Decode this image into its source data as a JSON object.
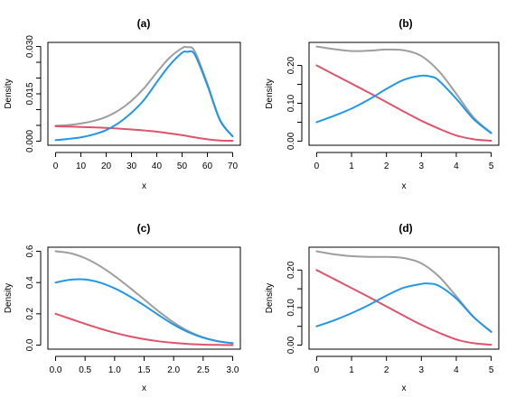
{
  "chart_data": [
    {
      "type": "line",
      "title": "(a)",
      "xlabel": "x",
      "ylabel": "Density",
      "xlim": [
        0,
        70
      ],
      "ylim": [
        0,
        0.03
      ],
      "xticks": [
        0,
        10,
        20,
        30,
        40,
        50,
        60,
        70
      ],
      "yticks": [
        0.0,
        0.005,
        0.01,
        0.015,
        0.02,
        0.025,
        0.03
      ],
      "ytick_labels": [
        "0.000",
        "",
        "0.015",
        "",
        "0.030"
      ],
      "ytick_label_values": [
        0.0,
        0.0075,
        0.015,
        0.0225,
        0.03
      ],
      "grid": false,
      "series": [
        {
          "color": "#9e9e9e",
          "x": [
            0,
            5,
            10,
            15,
            20,
            25,
            30,
            35,
            40,
            45,
            50,
            52,
            55,
            60,
            65,
            70
          ],
          "y": [
            0.0049,
            0.0051,
            0.0056,
            0.0064,
            0.0077,
            0.0098,
            0.0128,
            0.0168,
            0.0218,
            0.0264,
            0.0295,
            0.0298,
            0.0285,
            0.0182,
            0.0068,
            0.0016
          ]
        },
        {
          "color": "#df536b",
          "x": [
            0,
            10,
            20,
            30,
            40,
            50,
            55,
            60,
            65,
            70
          ],
          "y": [
            0.0047,
            0.0045,
            0.0042,
            0.0037,
            0.003,
            0.0019,
            0.0012,
            0.0006,
            0.0002,
            0.0001
          ]
        },
        {
          "color": "#2297e6",
          "x": [
            0,
            5,
            10,
            15,
            20,
            25,
            30,
            35,
            40,
            45,
            50,
            52,
            55,
            60,
            65,
            70
          ],
          "y": [
            0.0003,
            0.0007,
            0.0012,
            0.0021,
            0.0035,
            0.0058,
            0.009,
            0.0131,
            0.0187,
            0.024,
            0.028,
            0.0283,
            0.0275,
            0.0177,
            0.0066,
            0.0015
          ]
        }
      ]
    },
    {
      "type": "line",
      "title": "(b)",
      "xlabel": "x",
      "ylabel": "Density",
      "xlim": [
        0,
        5
      ],
      "ylim": [
        0,
        0.25
      ],
      "xticks": [
        0,
        1,
        2,
        3,
        4,
        5
      ],
      "yticks": [
        0.0,
        0.05,
        0.1,
        0.15,
        0.2
      ],
      "ytick_labels": [
        "0.00",
        "",
        "0.10",
        "",
        "0.20"
      ],
      "ytick_label_values": [
        0.0,
        0.05,
        0.1,
        0.15,
        0.2
      ],
      "grid": false,
      "series": [
        {
          "color": "#9e9e9e",
          "x": [
            0,
            0.5,
            1,
            1.5,
            2,
            2.5,
            3,
            3.5,
            4,
            4.5,
            5
          ],
          "y": [
            0.25,
            0.243,
            0.238,
            0.239,
            0.242,
            0.24,
            0.225,
            0.185,
            0.125,
            0.062,
            0.022
          ]
        },
        {
          "color": "#df536b",
          "x": [
            0,
            0.5,
            1,
            1.5,
            2,
            2.5,
            3,
            3.5,
            4,
            4.5,
            5
          ],
          "y": [
            0.2,
            0.176,
            0.152,
            0.128,
            0.103,
            0.078,
            0.054,
            0.033,
            0.015,
            0.005,
            0.001
          ]
        },
        {
          "color": "#2297e6",
          "x": [
            0,
            0.5,
            1,
            1.5,
            2,
            2.5,
            3,
            3.3,
            3.5,
            4,
            4.5,
            5
          ],
          "y": [
            0.05,
            0.067,
            0.086,
            0.11,
            0.138,
            0.162,
            0.173,
            0.17,
            0.16,
            0.112,
            0.058,
            0.021
          ]
        }
      ]
    },
    {
      "type": "line",
      "title": "(c)",
      "xlabel": "x",
      "ylabel": "Density",
      "xlim": [
        0,
        3
      ],
      "ylim": [
        0,
        0.6
      ],
      "xticks": [
        0.0,
        0.5,
        1.0,
        1.5,
        2.0,
        2.5,
        3.0
      ],
      "xtick_labels": [
        "0.0",
        "0.5",
        "1.0",
        "1.5",
        "2.0",
        "2.5",
        "3.0"
      ],
      "yticks": [
        0.0,
        0.2,
        0.4,
        0.6
      ],
      "ytick_labels": [
        "0.0",
        "0.2",
        "0.4",
        "0.6"
      ],
      "ytick_label_values": [
        0.0,
        0.2,
        0.4,
        0.6
      ],
      "grid": false,
      "series": [
        {
          "color": "#9e9e9e",
          "x": [
            0,
            0.25,
            0.5,
            0.75,
            1.0,
            1.25,
            1.5,
            1.75,
            2.0,
            2.25,
            2.5,
            2.75,
            3.0
          ],
          "y": [
            0.6,
            0.588,
            0.556,
            0.506,
            0.442,
            0.369,
            0.292,
            0.215,
            0.145,
            0.089,
            0.05,
            0.025,
            0.012
          ]
        },
        {
          "color": "#df536b",
          "x": [
            0,
            0.25,
            0.5,
            0.75,
            1.0,
            1.25,
            1.5,
            1.75,
            2.0,
            2.25,
            2.5,
            2.75,
            3.0
          ],
          "y": [
            0.2,
            0.168,
            0.136,
            0.106,
            0.079,
            0.056,
            0.038,
            0.024,
            0.014,
            0.007,
            0.003,
            0.001,
            0.0
          ]
        },
        {
          "color": "#2297e6",
          "x": [
            0,
            0.25,
            0.5,
            0.75,
            1.0,
            1.25,
            1.5,
            1.75,
            2.0,
            2.25,
            2.5,
            2.75,
            3.0
          ],
          "y": [
            0.4,
            0.418,
            0.42,
            0.4,
            0.363,
            0.313,
            0.254,
            0.191,
            0.131,
            0.082,
            0.047,
            0.024,
            0.012
          ]
        }
      ]
    },
    {
      "type": "line",
      "title": "(d)",
      "xlabel": "x",
      "ylabel": "Density",
      "xlim": [
        0,
        5
      ],
      "ylim": [
        0,
        0.25
      ],
      "xticks": [
        0,
        1,
        2,
        3,
        4,
        5
      ],
      "yticks": [
        0.0,
        0.05,
        0.1,
        0.15,
        0.2
      ],
      "ytick_labels": [
        "0.00",
        "",
        "0.10",
        "",
        "0.20"
      ],
      "ytick_label_values": [
        0.0,
        0.05,
        0.1,
        0.15,
        0.2
      ],
      "grid": false,
      "series": [
        {
          "color": "#9e9e9e",
          "x": [
            0,
            0.5,
            1,
            1.5,
            2,
            2.5,
            3,
            3.5,
            4,
            4.5,
            5
          ],
          "y": [
            0.25,
            0.242,
            0.237,
            0.235,
            0.235,
            0.232,
            0.218,
            0.183,
            0.13,
            0.075,
            0.036
          ]
        },
        {
          "color": "#df536b",
          "x": [
            0,
            0.5,
            1,
            1.5,
            2,
            2.5,
            3,
            3.5,
            4,
            4.5,
            5
          ],
          "y": [
            0.2,
            0.176,
            0.152,
            0.128,
            0.103,
            0.078,
            0.054,
            0.033,
            0.015,
            0.005,
            0.001
          ]
        },
        {
          "color": "#2297e6",
          "x": [
            0,
            0.5,
            1,
            1.5,
            2,
            2.5,
            3,
            3.2,
            3.5,
            4,
            4.5,
            5
          ],
          "y": [
            0.05,
            0.066,
            0.085,
            0.107,
            0.132,
            0.153,
            0.163,
            0.164,
            0.158,
            0.124,
            0.074,
            0.035
          ]
        }
      ]
    }
  ]
}
